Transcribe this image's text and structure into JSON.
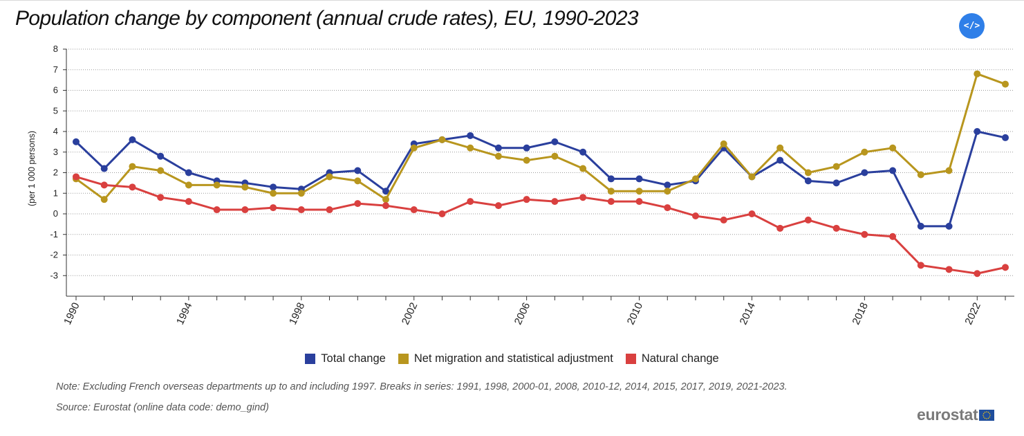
{
  "header": {
    "title": "Population change by component (annual crude rates), EU, 1990-2023",
    "embed_label": "</>"
  },
  "footer": {
    "note": "Note: Excluding French overseas departments up to and including 1997. Breaks in series: 1991, 1998, 2000-01, 2008, 2010-12, 2014, 2015, 2017, 2019, 2021-2023.",
    "source": "Source: Eurostat (online data code: demo_gind)",
    "logo_text": "eurostat"
  },
  "chart_data": {
    "type": "line",
    "title": "Population change by component (annual crude rates), EU, 1990-2023",
    "xlabel": "",
    "ylabel": "(per 1 000 persons)",
    "ylim": [
      -4,
      8
    ],
    "yticks": [
      8,
      7,
      6,
      5,
      4,
      3,
      2,
      1,
      0,
      -1,
      -2,
      -3
    ],
    "xticks": [
      1990,
      1994,
      1998,
      2002,
      2006,
      2010,
      2014,
      2018,
      2022
    ],
    "grid": "horizontal dotted",
    "legend_position": "bottom",
    "x": [
      1990,
      1991,
      1992,
      1993,
      1994,
      1995,
      1996,
      1997,
      1998,
      1999,
      2000,
      2001,
      2002,
      2003,
      2004,
      2005,
      2006,
      2007,
      2008,
      2009,
      2010,
      2011,
      2012,
      2013,
      2014,
      2015,
      2016,
      2017,
      2018,
      2019,
      2020,
      2021,
      2022,
      2023
    ],
    "series": [
      {
        "name": "Total change",
        "color": "#2a3f9d",
        "values": [
          3.5,
          2.2,
          3.6,
          2.8,
          2.0,
          1.6,
          1.5,
          1.3,
          1.2,
          2.0,
          2.1,
          1.1,
          3.4,
          3.6,
          3.8,
          3.2,
          3.2,
          3.5,
          3.0,
          1.7,
          1.7,
          1.4,
          1.6,
          3.2,
          1.8,
          2.6,
          1.6,
          1.5,
          2.0,
          2.1,
          -0.6,
          -0.6,
          4.0,
          3.7
        ]
      },
      {
        "name": "Net migration and statistical adjustment",
        "color": "#b8961e",
        "values": [
          1.7,
          0.7,
          2.3,
          2.1,
          1.4,
          1.4,
          1.3,
          1.0,
          1.0,
          1.8,
          1.6,
          0.7,
          3.2,
          3.6,
          3.2,
          2.8,
          2.6,
          2.8,
          2.2,
          1.1,
          1.1,
          1.1,
          1.7,
          3.4,
          1.8,
          3.2,
          2.0,
          2.3,
          3.0,
          3.2,
          1.9,
          2.1,
          6.8,
          6.3
        ]
      },
      {
        "name": "Natural change",
        "color": "#d9403f",
        "values": [
          1.8,
          1.4,
          1.3,
          0.8,
          0.6,
          0.2,
          0.2,
          0.3,
          0.2,
          0.2,
          0.5,
          0.4,
          0.2,
          0.0,
          0.6,
          0.4,
          0.7,
          0.6,
          0.8,
          0.6,
          0.6,
          0.3,
          -0.1,
          -0.3,
          0.0,
          -0.7,
          -0.3,
          -0.7,
          -1.0,
          -1.1,
          -2.5,
          -2.7,
          -2.9,
          -2.6
        ]
      }
    ]
  }
}
